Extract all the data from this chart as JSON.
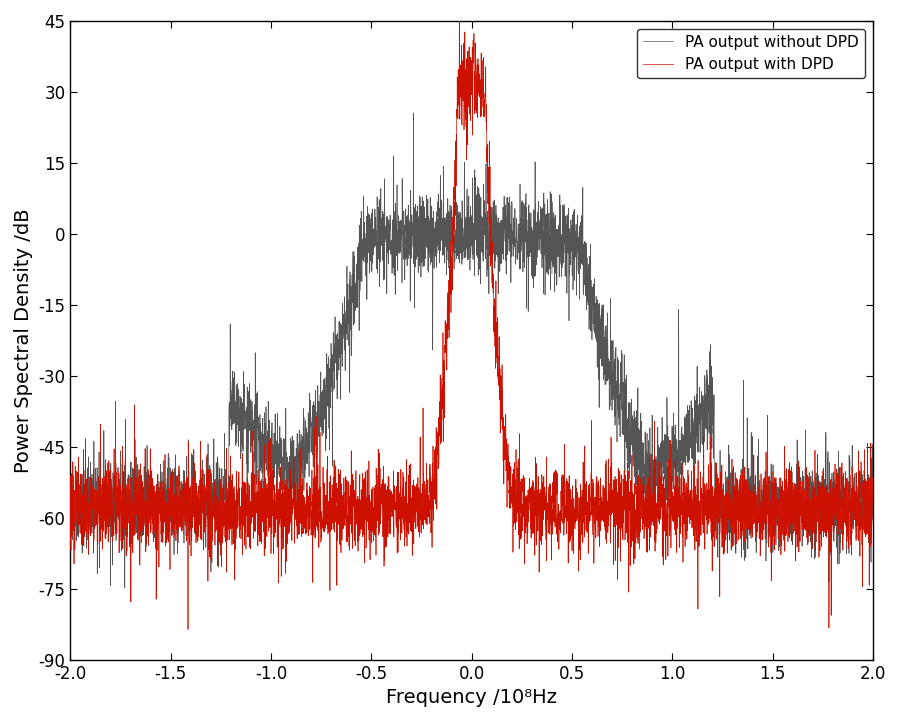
{
  "title": "",
  "xlabel": "Frequency /10⁸Hz",
  "ylabel": "Power Spectral Density /dB",
  "xlim": [
    -2.0,
    2.0
  ],
  "ylim": [
    -90,
    45
  ],
  "yticks": [
    -90,
    -75,
    -60,
    -45,
    -30,
    -15,
    0,
    15,
    30,
    45
  ],
  "xticks": [
    -2.0,
    -1.5,
    -1.0,
    -0.5,
    0.0,
    0.5,
    1.0,
    1.5,
    2.0
  ],
  "legend": [
    "PA output without DPD",
    "PA output with DPD"
  ],
  "color_nodpd": "#555555",
  "color_dpd": "#cc1100",
  "background_color": "#ffffff",
  "noise_floor_nodpd": -57,
  "noise_floor_dpd": -58,
  "peak_nodpd": 0,
  "peak_dpd": 33,
  "signal_bw_nodpd": 0.55,
  "signal_bw_dpd": 0.18,
  "seed": 42
}
